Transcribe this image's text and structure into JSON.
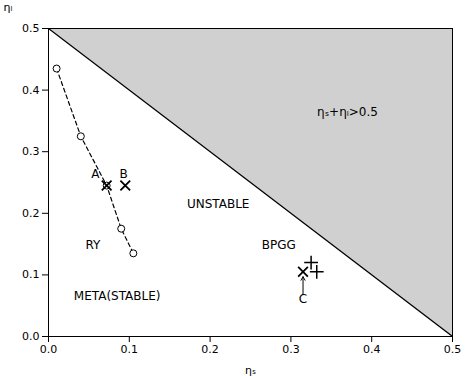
{
  "chart_data": {
    "type": "scatter",
    "xlabel": "ηₛ",
    "ylabel": "ηₗ",
    "xlim": [
      0.0,
      0.5
    ],
    "ylim": [
      0.0,
      0.5
    ],
    "xticks": [
      {
        "value": 0.0,
        "label": "0.0"
      },
      0.1,
      0.2,
      0.3,
      0.4,
      0.5
    ],
    "yticks": [
      {
        "value": 0.0,
        "label": "0.0"
      },
      0.1,
      0.2,
      0.3,
      0.4,
      0.5
    ],
    "grid": false,
    "series": [
      {
        "type": "area",
        "color": "#d0d0d0",
        "x": [
          0.0,
          0.5,
          0.5,
          0.0
        ],
        "y": [
          0.5,
          0.0,
          0.5,
          0.5
        ]
      },
      {
        "type": "line",
        "color": "#000000",
        "line_style": "solid",
        "x": [
          0.0,
          0.5
        ],
        "y": [
          0.5,
          0.0
        ]
      },
      {
        "type": "line",
        "color": "#000000",
        "line_style": "dashed",
        "x": [
          0.01,
          0.04,
          0.072,
          0.09,
          0.105
        ],
        "y": [
          0.435,
          0.325,
          0.245,
          0.175,
          0.135
        ]
      },
      {
        "type": "scatter",
        "color": "#000000",
        "marker": "circle",
        "x": [
          0.01,
          0.04,
          0.09,
          0.105
        ],
        "y": [
          0.435,
          0.325,
          0.175,
          0.135
        ]
      },
      {
        "type": "scatter",
        "color": "#000000",
        "marker": "circle",
        "x": [
          0.072
        ],
        "y": [
          0.245
        ]
      },
      {
        "type": "scatter",
        "color": "#000000",
        "marker": "x",
        "x": [
          0.072
        ],
        "y": [
          0.245
        ]
      },
      {
        "type": "scatter",
        "color": "#000000",
        "marker": "x",
        "x": [
          0.095
        ],
        "y": [
          0.245
        ]
      },
      {
        "type": "scatter",
        "color": "#000000",
        "marker": "x",
        "x": [
          0.315
        ],
        "y": [
          0.105
        ]
      },
      {
        "type": "scatter",
        "color": "#000000",
        "marker": "plus",
        "x": [
          0.325,
          0.332
        ],
        "y": [
          0.12,
          0.105
        ]
      }
    ],
    "arrows": [
      {
        "x1": 0.315,
        "y1": 0.068,
        "x2": 0.315,
        "y2": 0.097,
        "color": "#000000"
      }
    ],
    "annotations": [
      {
        "text": "A",
        "x": 0.058,
        "y": 0.263
      },
      {
        "text": "B",
        "x": 0.093,
        "y": 0.263
      },
      {
        "text": "RY",
        "x": 0.055,
        "y": 0.148
      },
      {
        "text": "BPGG",
        "x": 0.285,
        "y": 0.148
      },
      {
        "text": "C",
        "x": 0.315,
        "y": 0.06
      },
      {
        "text": "UNSTABLE",
        "x": 0.21,
        "y": 0.215
      },
      {
        "text": "META(STABLE)",
        "x": 0.085,
        "y": 0.065
      },
      {
        "text": "ηₛ+ηₗ>0.5",
        "x": 0.37,
        "y": 0.365
      }
    ]
  }
}
